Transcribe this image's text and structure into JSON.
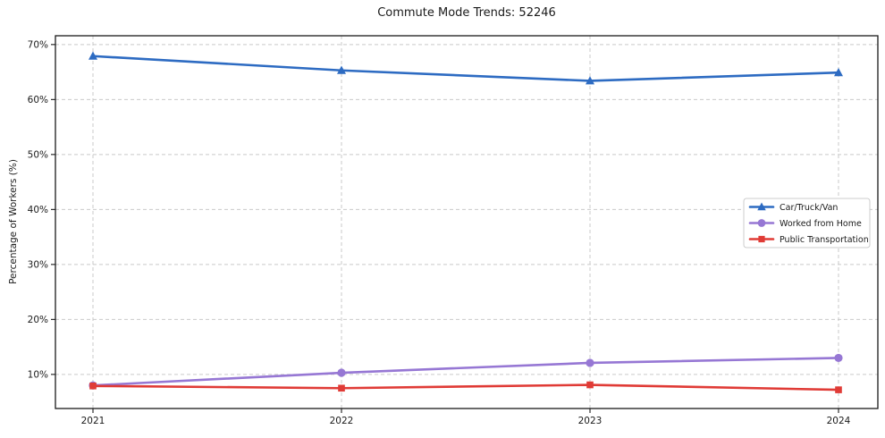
{
  "chart_data": {
    "type": "line",
    "title": "Commute Mode Trends: 52246",
    "xlabel": "",
    "ylabel": "Percentage of Workers (%)",
    "categories": [
      "2021",
      "2022",
      "2023",
      "2024"
    ],
    "series": [
      {
        "name": "Car/Truck/Van",
        "marker": "triangle",
        "color": "#2d6bc2",
        "values": [
          67.9,
          65.3,
          63.4,
          64.9
        ]
      },
      {
        "name": "Worked from Home",
        "marker": "circle",
        "color": "#9677d4",
        "values": [
          8.0,
          10.3,
          12.1,
          13.0
        ]
      },
      {
        "name": "Public Transportation",
        "marker": "square",
        "color": "#e03b36",
        "values": [
          7.9,
          7.5,
          8.1,
          7.2
        ]
      }
    ],
    "y_ticks": [
      {
        "value": 10,
        "label": "10%"
      },
      {
        "value": 20,
        "label": "20%"
      },
      {
        "value": 30,
        "label": "30%"
      },
      {
        "value": 40,
        "label": "40%"
      },
      {
        "value": 50,
        "label": "50%"
      },
      {
        "value": 60,
        "label": "60%"
      },
      {
        "value": 70,
        "label": "70%"
      }
    ],
    "ylim": [
      3.8,
      71.6
    ],
    "grid": true,
    "grid_on": "both",
    "legend_position": "center right",
    "colors": {
      "background": "#ffffff",
      "grid": "#c9c9c9",
      "axis": "#1a1a1a",
      "text": "#1a1a1a",
      "legend_border": "#cccccc",
      "legend_background": "#ffffff"
    }
  }
}
